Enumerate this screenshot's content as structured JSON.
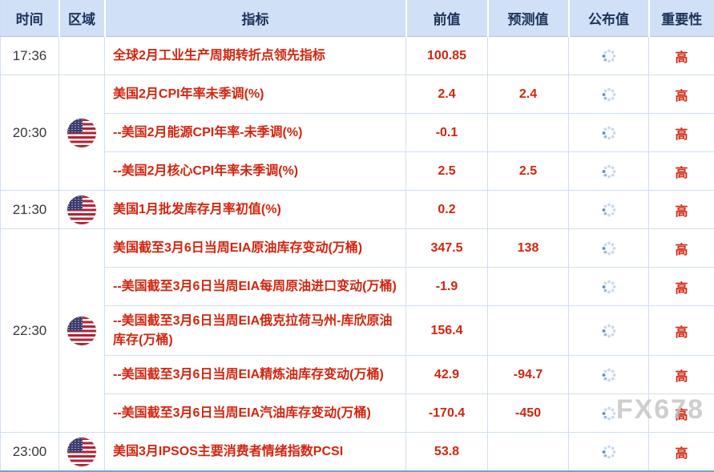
{
  "page": {
    "watermark": "FX678"
  },
  "table": {
    "headers": [
      "时间",
      "区域",
      "指标",
      "前值",
      "预测值",
      "公布值",
      "重要性"
    ],
    "published_icon": "loading-spinner",
    "region_flag_icon": "us-flag",
    "colors": {
      "accent_red": "#d2250e",
      "header_bg": "#cfe0f7",
      "header_text": "#1c3257",
      "border_light_blue": "#cfdff2",
      "border_bottom_blue": "#74a3da",
      "watermark_gray": "#c2c2c2",
      "spinner_blue": "#5b8ac9"
    },
    "groups": [
      {
        "time": "17:36",
        "region": "",
        "rows": [
          {
            "indicator": "全球2月工业生产周期转折点领先指标",
            "previous": "100.85",
            "forecast": "",
            "published": "",
            "importance": "高"
          }
        ]
      },
      {
        "time": "20:30",
        "region": "united-states",
        "rows": [
          {
            "indicator": "美国2月CPI年率未季调(%)",
            "previous": "2.4",
            "forecast": "2.4",
            "published": "",
            "importance": "高"
          },
          {
            "indicator": "--美国2月能源CPI年率-未季调(%)",
            "previous": "-0.1",
            "forecast": "",
            "published": "",
            "importance": "高"
          },
          {
            "indicator": "--美国2月核心CPI年率未季调(%)",
            "previous": "2.5",
            "forecast": "2.5",
            "published": "",
            "importance": "高"
          }
        ]
      },
      {
        "time": "21:30",
        "region": "united-states",
        "rows": [
          {
            "indicator": "美国1月批发库存月率初值(%)",
            "previous": "0.2",
            "forecast": "",
            "published": "",
            "importance": "高"
          }
        ]
      },
      {
        "time": "22:30",
        "region": "united-states",
        "rows": [
          {
            "indicator": "美国截至3月6日当周EIA原油库存变动(万桶)",
            "previous": "347.5",
            "forecast": "138",
            "published": "",
            "importance": "高"
          },
          {
            "indicator": "--美国截至3月6日当周EIA每周原油进口变动(万桶)",
            "previous": "-1.9",
            "forecast": "",
            "published": "",
            "importance": "高"
          },
          {
            "indicator": "--美国截至3月6日当周EIA俄克拉荷马州-库欣原油库存(万桶)",
            "previous": "156.4",
            "forecast": "",
            "published": "",
            "importance": "高"
          },
          {
            "indicator": "--美国截至3月6日当周EIA精炼油库存变动(万桶)",
            "previous": "42.9",
            "forecast": "-94.7",
            "published": "",
            "importance": "高"
          },
          {
            "indicator": "--美国截至3月6日当周EIA汽油库存变动(万桶)",
            "previous": "-170.4",
            "forecast": "-450",
            "published": "",
            "importance": "高"
          }
        ]
      },
      {
        "time": "23:00",
        "region": "united-states",
        "rows": [
          {
            "indicator": "美国3月IPSOS主要消费者情绪指数PCSI",
            "previous": "53.8",
            "forecast": "",
            "published": "",
            "importance": "高"
          }
        ]
      }
    ]
  }
}
